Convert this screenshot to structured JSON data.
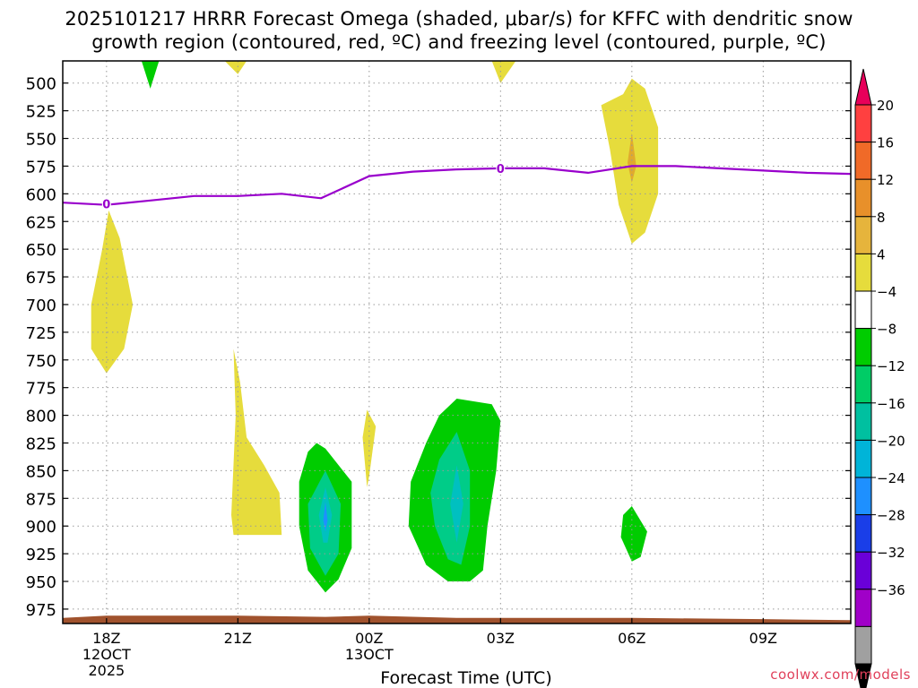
{
  "title": {
    "line1": "2025101217 HRRR Forecast Omega (shaded, μbar/s) for KFFC with dendritic snow",
    "line2": "growth region (contoured, red, ºC) and freezing level (contoured, purple, ºC)"
  },
  "watermark": "coolwx.com/models",
  "colors": {
    "freezing_line": "#9900cc",
    "ground": "#a0522d",
    "yellow": "#e6dc3c",
    "dark_yellow": "#e0aa2e",
    "orange": "#e08228",
    "green": "#00cc00",
    "teal": "#00cc88",
    "cyan": "#00c0c0",
    "blue": "#1e90ff"
  },
  "chart_data": {
    "type": "heatmap",
    "title": "2025101217 HRRR Forecast Omega (shaded, μbar/s) for KFFC",
    "xlabel": "Forecast Time (UTC)",
    "ylabel": "",
    "x_range_hours": [
      -1,
      17
    ],
    "y_range_hpa": [
      480,
      988
    ],
    "x_ticks": [
      {
        "h": 0,
        "label": "18Z",
        "sub1": "12OCT",
        "sub2": "2025"
      },
      {
        "h": 3,
        "label": "21Z",
        "sub1": "",
        "sub2": ""
      },
      {
        "h": 6,
        "label": "00Z",
        "sub1": "13OCT",
        "sub2": ""
      },
      {
        "h": 9,
        "label": "03Z",
        "sub1": "",
        "sub2": ""
      },
      {
        "h": 12,
        "label": "06Z",
        "sub1": "",
        "sub2": ""
      },
      {
        "h": 15,
        "label": "09Z",
        "sub1": "",
        "sub2": ""
      }
    ],
    "y_ticks": [
      500,
      525,
      550,
      575,
      600,
      625,
      650,
      675,
      700,
      725,
      750,
      775,
      800,
      825,
      850,
      875,
      900,
      925,
      950,
      975
    ],
    "colorbar": {
      "labels": [
        "20",
        "16",
        "12",
        "8",
        "4",
        "−4",
        "−8",
        "−12",
        "−16",
        "−20",
        "−24",
        "−28",
        "−32",
        "−36"
      ],
      "colors": [
        "#e8005a",
        "#ff4040",
        "#f06a28",
        "#e8902a",
        "#e6b43c",
        "#e6dc3c",
        "#ffffff",
        "#00cc00",
        "#00cc66",
        "#00c0a0",
        "#00b4d8",
        "#1e90ff",
        "#1a3ee8",
        "#6a00d8",
        "#a000c8",
        "#a0a0a0",
        "#000000"
      ]
    },
    "freezing_level": {
      "label": "0",
      "points": [
        [
          -1,
          608
        ],
        [
          0,
          610
        ],
        [
          1,
          606
        ],
        [
          2,
          602
        ],
        [
          3,
          602
        ],
        [
          4,
          600
        ],
        [
          4.9,
          604
        ],
        [
          6,
          584
        ],
        [
          7,
          580
        ],
        [
          8,
          578
        ],
        [
          9,
          577
        ],
        [
          10,
          577
        ],
        [
          11,
          581
        ],
        [
          12,
          575
        ],
        [
          13,
          575
        ],
        [
          14,
          577
        ],
        [
          15,
          579
        ],
        [
          16,
          581
        ],
        [
          17,
          582
        ]
      ],
      "label_points": [
        [
          0,
          609
        ],
        [
          9,
          577
        ]
      ]
    },
    "shaded_regions": [
      {
        "name": "yellow-upper-left",
        "level": "4 to 8",
        "color": "yellow",
        "points": [
          [
            0,
            762
          ],
          [
            -0.35,
            740
          ],
          [
            -0.35,
            700
          ],
          [
            -0.1,
            650
          ],
          [
            0.05,
            615
          ],
          [
            0.3,
            640
          ],
          [
            0.6,
            700
          ],
          [
            0.4,
            740
          ]
        ]
      },
      {
        "name": "yellow-21z",
        "level": "4 to 8",
        "color": "yellow",
        "points": [
          [
            2.9,
            740
          ],
          [
            2.95,
            800
          ],
          [
            2.85,
            890
          ],
          [
            2.9,
            908
          ],
          [
            4.0,
            908
          ],
          [
            3.95,
            870
          ],
          [
            3.6,
            845
          ],
          [
            3.2,
            820
          ],
          [
            3.05,
            770
          ]
        ]
      },
      {
        "name": "yellow-00z-sliver",
        "level": "4 to 8",
        "color": "yellow",
        "points": [
          [
            5.95,
            865
          ],
          [
            5.85,
            820
          ],
          [
            5.95,
            795
          ],
          [
            6.15,
            810
          ],
          [
            6.0,
            855
          ]
        ]
      },
      {
        "name": "yellow-06z",
        "level": "4 to 8",
        "color": "yellow",
        "points": [
          [
            11.8,
            510
          ],
          [
            12.0,
            496
          ],
          [
            12.3,
            505
          ],
          [
            12.6,
            540
          ],
          [
            12.6,
            600
          ],
          [
            12.3,
            635
          ],
          [
            12.0,
            645
          ],
          [
            11.7,
            610
          ],
          [
            11.5,
            560
          ],
          [
            11.3,
            520
          ]
        ]
      },
      {
        "name": "orange-06z",
        "level": "8 to 12",
        "color": "dark_yellow",
        "points": [
          [
            12.0,
            545
          ],
          [
            12.1,
            575
          ],
          [
            12.0,
            590
          ],
          [
            11.9,
            572
          ]
        ]
      },
      {
        "name": "yellow-21z-top",
        "level": "4 to 8",
        "color": "yellow",
        "points": [
          [
            2.7,
            480
          ],
          [
            3.2,
            480
          ],
          [
            3.0,
            492
          ]
        ]
      },
      {
        "name": "yellow-03z-top",
        "level": "4 to 8",
        "color": "yellow",
        "points": [
          [
            8.8,
            480
          ],
          [
            9.35,
            480
          ],
          [
            9.0,
            500
          ]
        ]
      },
      {
        "name": "green-19z-top",
        "level": "-4 to -8",
        "color": "green",
        "points": [
          [
            0.8,
            480
          ],
          [
            1.2,
            480
          ],
          [
            1.0,
            505
          ]
        ]
      },
      {
        "name": "green-2330z",
        "level": "-4 to -8",
        "color": "green",
        "points": [
          [
            5.0,
            830
          ],
          [
            5.6,
            860
          ],
          [
            5.6,
            920
          ],
          [
            5.3,
            948
          ],
          [
            5.0,
            960
          ],
          [
            4.6,
            940
          ],
          [
            4.4,
            900
          ],
          [
            4.4,
            860
          ],
          [
            4.6,
            833
          ],
          [
            4.8,
            825
          ]
        ]
      },
      {
        "name": "teal-2330z",
        "level": "-8 to -12",
        "color": "teal",
        "points": [
          [
            5.0,
            850
          ],
          [
            5.35,
            880
          ],
          [
            5.3,
            925
          ],
          [
            5.0,
            945
          ],
          [
            4.65,
            920
          ],
          [
            4.6,
            880
          ]
        ]
      },
      {
        "name": "cyan-2330z",
        "level": "-12 to -16",
        "color": "cyan",
        "points": [
          [
            5.0,
            865
          ],
          [
            5.15,
            890
          ],
          [
            5.05,
            915
          ],
          [
            4.95,
            915
          ],
          [
            4.85,
            890
          ]
        ]
      },
      {
        "name": "blue-2330z",
        "level": "-16 to -20",
        "color": "blue",
        "points": [
          [
            5.0,
            878
          ],
          [
            5.05,
            895
          ],
          [
            5.0,
            905
          ],
          [
            4.95,
            895
          ]
        ]
      },
      {
        "name": "green-0130z",
        "level": "-4 to -8",
        "color": "green",
        "points": [
          [
            8.8,
            790
          ],
          [
            9.0,
            805
          ],
          [
            8.9,
            850
          ],
          [
            8.7,
            900
          ],
          [
            8.6,
            940
          ],
          [
            8.3,
            950
          ],
          [
            7.8,
            950
          ],
          [
            7.3,
            935
          ],
          [
            6.9,
            900
          ],
          [
            6.95,
            860
          ],
          [
            7.3,
            825
          ],
          [
            7.6,
            800
          ],
          [
            8.0,
            785
          ]
        ]
      },
      {
        "name": "teal-0130z",
        "level": "-8 to -12",
        "color": "teal",
        "points": [
          [
            8.0,
            815
          ],
          [
            8.3,
            850
          ],
          [
            8.3,
            900
          ],
          [
            8.1,
            935
          ],
          [
            7.8,
            930
          ],
          [
            7.5,
            900
          ],
          [
            7.4,
            870
          ],
          [
            7.6,
            840
          ]
        ]
      },
      {
        "name": "cyan-0130z",
        "level": "-12 to -16",
        "color": "cyan",
        "points": [
          [
            8.0,
            845
          ],
          [
            8.15,
            880
          ],
          [
            8.0,
            915
          ],
          [
            7.85,
            880
          ]
        ]
      },
      {
        "name": "green-06z-small",
        "level": "-4 to -8",
        "color": "green",
        "points": [
          [
            12.0,
            882
          ],
          [
            12.35,
            905
          ],
          [
            12.2,
            928
          ],
          [
            12.0,
            932
          ],
          [
            11.75,
            910
          ],
          [
            11.8,
            890
          ]
        ]
      }
    ],
    "ground_surface_hpa": [
      [
        -1,
        983
      ],
      [
        0,
        981
      ],
      [
        3,
        981
      ],
      [
        5,
        982
      ],
      [
        6,
        981
      ],
      [
        8,
        983
      ],
      [
        12,
        983
      ],
      [
        15,
        984
      ],
      [
        17,
        985
      ]
    ]
  }
}
